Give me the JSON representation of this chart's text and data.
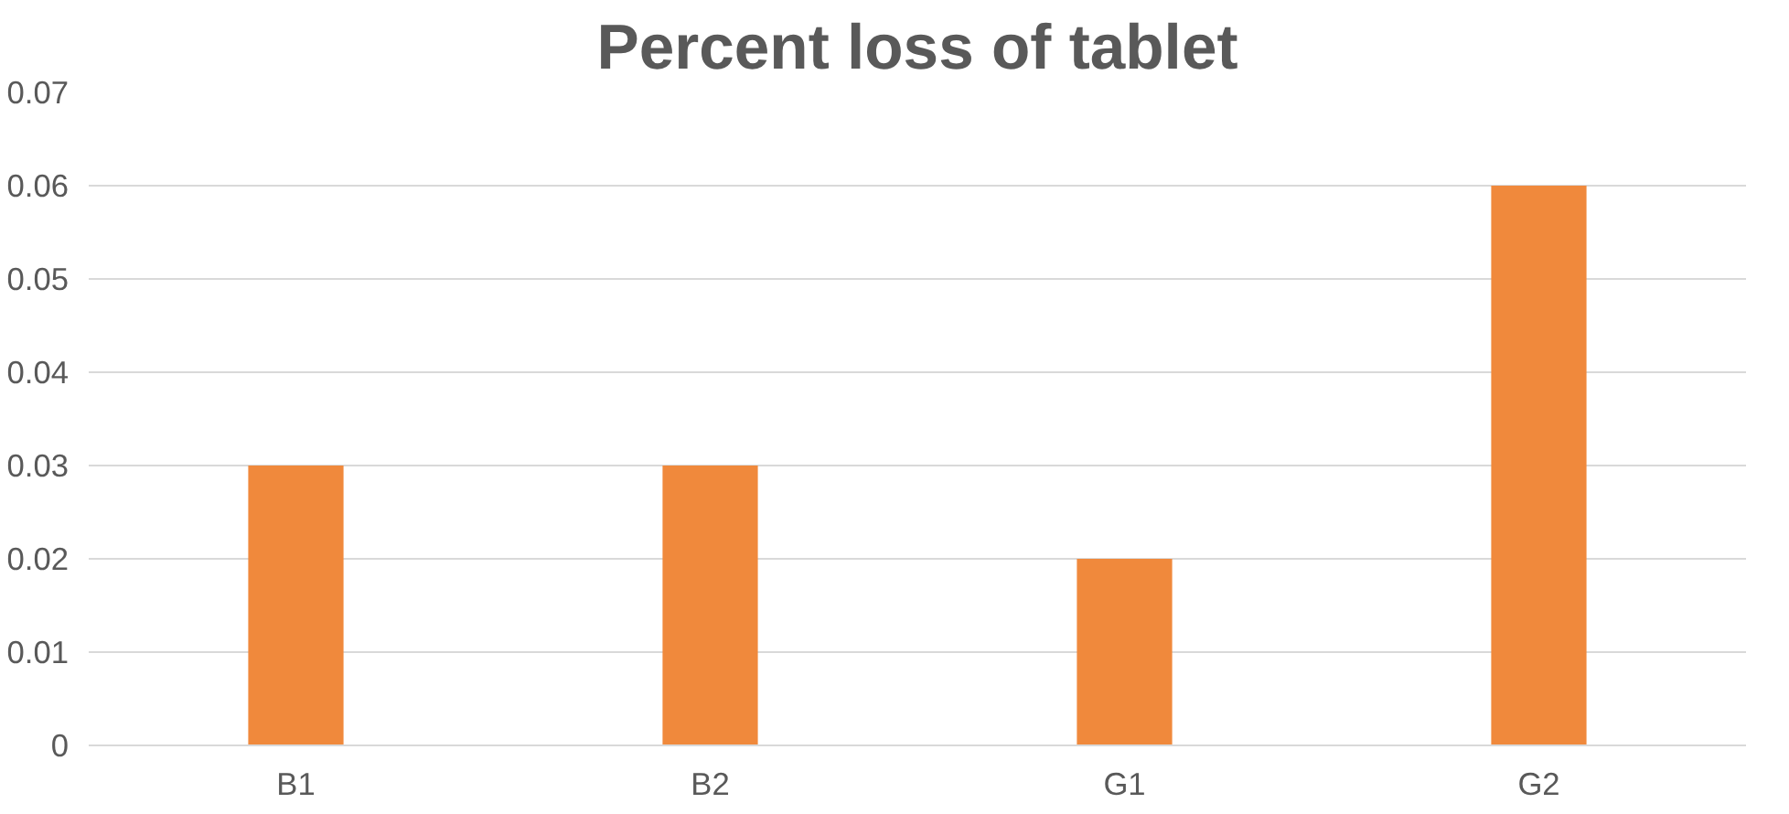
{
  "chart_data": {
    "type": "bar",
    "title": "Percent loss of tablet",
    "categories": [
      "B1",
      "B2",
      "G1",
      "G2"
    ],
    "values": [
      0.03,
      0.03,
      0.02,
      0.06
    ],
    "color": "#f0893c",
    "ylim": [
      0,
      0.07
    ],
    "yticks": [
      0,
      0.01,
      0.02,
      0.03,
      0.04,
      0.05,
      0.06,
      0.07
    ],
    "grid": "y"
  }
}
